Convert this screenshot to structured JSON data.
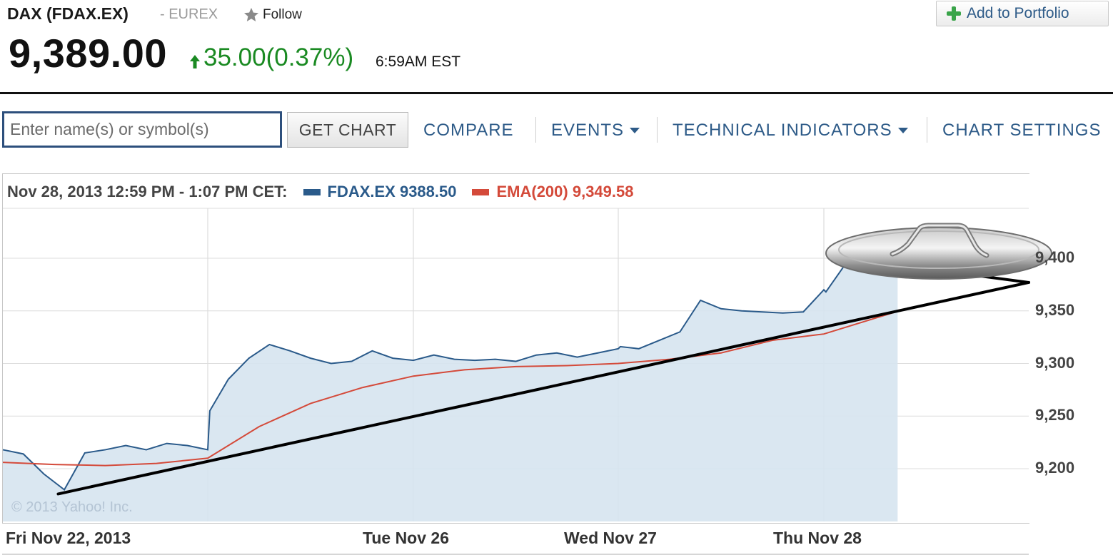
{
  "header": {
    "title": "DAX (FDAX.EX)",
    "exchange": "- EUREX",
    "follow_label": "Follow",
    "add_portfolio_label": "Add to Portfolio",
    "price": "9,389.00",
    "change": "35.00(0.37%)",
    "timestamp": "6:59AM EST"
  },
  "toolbar": {
    "search_placeholder": "Enter name(s) or symbol(s)",
    "get_chart_label": "GET CHART",
    "compare_label": "COMPARE",
    "events_label": "EVENTS",
    "technical_indicators_label": "TECHNICAL INDICATORS",
    "chart_settings_label": "CHART SETTINGS"
  },
  "legend": {
    "range": "Nov 28, 2013 12:59 PM - 1:07 PM CET:",
    "series1": "FDAX.EX 9388.50",
    "series2": "EMA(200) 9,349.58"
  },
  "copyright": "© 2013 Yahoo! Inc.",
  "colors": {
    "price_line": "#2a5a8a",
    "area_fill": "#d6e4f0",
    "ema_line": "#d44a3a",
    "up_change": "#1a8a22",
    "link": "#2e5b88",
    "trendline": "#000000"
  },
  "icons": {
    "follow": "star-icon",
    "add_portfolio": "plus-icon",
    "change": "up-arrow-icon",
    "dropdown": "caret-down-icon"
  },
  "chart_data": {
    "type": "area",
    "y_ticks": [
      "9,200",
      "9,250",
      "9,300",
      "9,350",
      "9,400"
    ],
    "ylim": [
      9150,
      9420
    ],
    "x_labels": [
      "Fri Nov 22, 2013",
      "Tue Nov 26",
      "Wed Nov 27",
      "Thu Nov 28"
    ],
    "grid": true,
    "series": [
      {
        "name": "FDAX.EX",
        "x": [
          0,
          0.1,
          0.2,
          0.3,
          0.4,
          0.5,
          0.6,
          0.7,
          0.8,
          0.9,
          1.0,
          1.01,
          1.1,
          1.2,
          1.3,
          1.4,
          1.5,
          1.6,
          1.7,
          1.8,
          1.9,
          2.0,
          2.1,
          2.2,
          2.3,
          2.4,
          2.5,
          2.6,
          2.7,
          2.8,
          2.9,
          3.0,
          3.01,
          3.1,
          3.2,
          3.3,
          3.4,
          3.5,
          3.6,
          3.7,
          3.8,
          3.9,
          4.0,
          4.01,
          4.1,
          4.2,
          4.3,
          4.36
        ],
        "values": [
          9218,
          9214,
          9195,
          9180,
          9215,
          9218,
          9222,
          9218,
          9224,
          9222,
          9218,
          9255,
          9285,
          9305,
          9318,
          9312,
          9305,
          9300,
          9302,
          9312,
          9305,
          9303,
          9308,
          9304,
          9303,
          9304,
          9302,
          9308,
          9310,
          9306,
          9310,
          9314,
          9316,
          9314,
          9322,
          9330,
          9360,
          9352,
          9350,
          9349,
          9348,
          9349,
          9370,
          9368,
          9393,
          9395,
          9388,
          9388.5
        ]
      },
      {
        "name": "EMA(200)",
        "x": [
          0,
          0.25,
          0.5,
          0.75,
          1.0,
          1.25,
          1.5,
          1.75,
          2.0,
          2.25,
          2.5,
          2.75,
          3.0,
          3.25,
          3.5,
          3.75,
          4.0,
          4.25,
          4.36
        ],
        "values": [
          9206,
          9204,
          9203,
          9205,
          9210,
          9240,
          9262,
          9277,
          9288,
          9294,
          9297,
          9298,
          9300,
          9304,
          9310,
          9322,
          9328,
          9343,
          9349.58
        ]
      }
    ],
    "annotations": [
      {
        "type": "trendline",
        "from": {
          "x": 0.27,
          "y": 9176
        },
        "to": {
          "x": 5.0,
          "y": 9377
        }
      },
      {
        "type": "trendline",
        "from": {
          "x": 4.1,
          "y": 9400
        },
        "to": {
          "x": 5.0,
          "y": 9377
        }
      }
    ]
  }
}
